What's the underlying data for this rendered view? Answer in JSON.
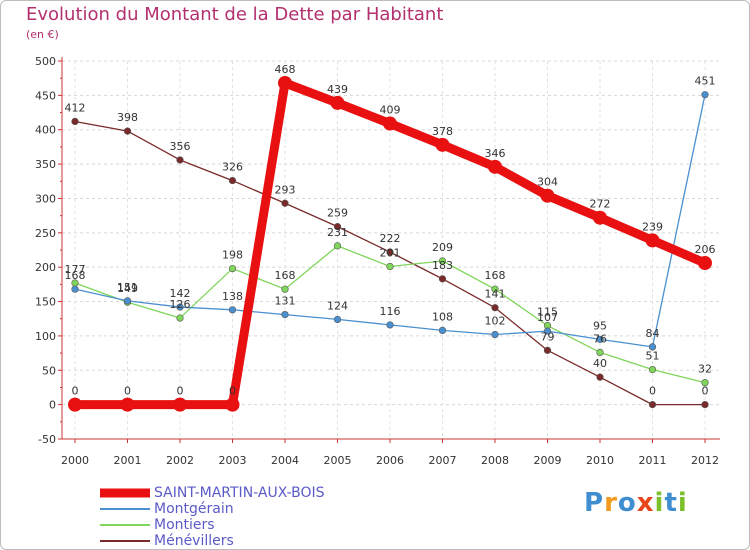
{
  "header": {
    "title": "Evolution du Montant de la Dette par Habitant",
    "subtitle": "(en €)"
  },
  "logo": {
    "text": "Proxiti",
    "letters": [
      "P",
      "r",
      "o",
      "x",
      "i",
      "t",
      "i"
    ],
    "colors": [
      "#3f8fd0",
      "#f39a1e",
      "#3f8fd0",
      "#e8471c",
      "#7cbf2a",
      "#3f8fd0",
      "#7cbf2a"
    ]
  },
  "chart_data": {
    "type": "line",
    "title": "Evolution du Montant de la Dette par Habitant",
    "ylabel": "(en €)",
    "xlabel": "",
    "x": [
      "2000",
      "2001",
      "2002",
      "2003",
      "2004",
      "2005",
      "2006",
      "2007",
      "2008",
      "2009",
      "2010",
      "2011",
      "2012"
    ],
    "ylim": [
      -50,
      500
    ],
    "yticks": [
      -50,
      0,
      50,
      100,
      150,
      200,
      250,
      300,
      350,
      400,
      450,
      500
    ],
    "grid": "horizontal-dashed",
    "series": [
      {
        "name": "Ménévillers",
        "color": "#7a2a2a",
        "values": [
          412,
          398,
          356,
          326,
          293,
          259,
          222,
          183,
          141,
          79,
          40,
          0,
          0
        ],
        "labels": [
          "412",
          "398",
          "356",
          "326",
          "293",
          "259",
          "222",
          "183",
          "141",
          "79",
          "40",
          "0",
          "0"
        ]
      },
      {
        "name": "Montiers",
        "color": "#7fd65a",
        "values": [
          177,
          149,
          126,
          198,
          168,
          231,
          201,
          209,
          168,
          115,
          76,
          51,
          32
        ],
        "labels": [
          "177",
          "149",
          "126",
          "198",
          "168",
          "231",
          "201",
          "209",
          "168",
          "115",
          "76",
          "51",
          "32"
        ]
      },
      {
        "name": "Montgérain",
        "color": "#4a90d0",
        "values": [
          168,
          151,
          142,
          138,
          131,
          124,
          116,
          108,
          102,
          107,
          95,
          84,
          451
        ],
        "labels": [
          "168",
          "151",
          "142",
          "138",
          "131",
          "124",
          "116",
          "108",
          "102",
          "107",
          "95",
          "84",
          "451"
        ]
      },
      {
        "name": "SAINT-MARTIN-AUX-BOIS",
        "color": "#e81010",
        "values": [
          0,
          0,
          0,
          0,
          468,
          439,
          409,
          378,
          346,
          304,
          272,
          239,
          206
        ],
        "labels": [
          "0",
          "0",
          "0",
          "0",
          "468",
          "439",
          "409",
          "378",
          "346",
          "304",
          "272",
          "239",
          "206"
        ]
      }
    ],
    "legend": {
      "position": "bottom-left",
      "order": [
        "SAINT-MARTIN-AUX-BOIS",
        "Montgérain",
        "Montiers",
        "Ménévillers"
      ]
    }
  }
}
